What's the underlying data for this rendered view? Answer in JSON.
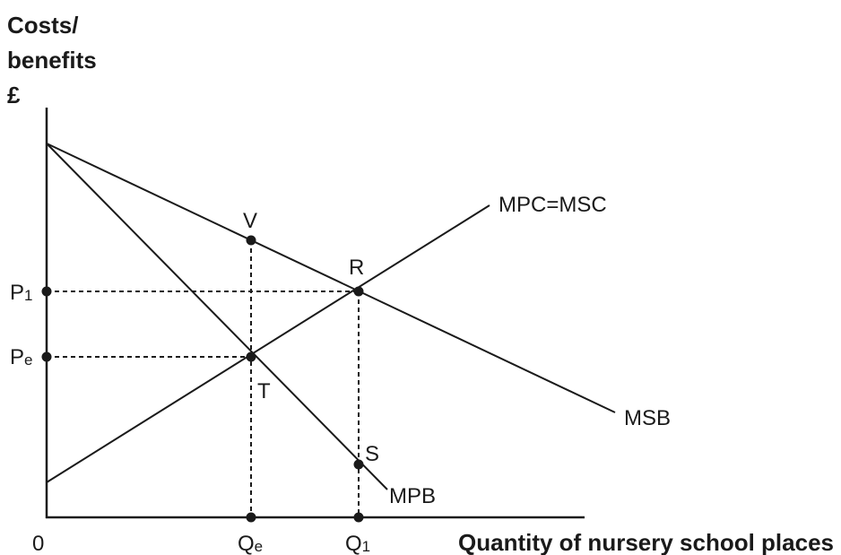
{
  "y_axis_label": {
    "line1": "Costs/",
    "line2": "benefits",
    "line3": "£"
  },
  "x_axis_label": "Quantity of nursery school places",
  "origin_label": "0",
  "curves": {
    "mpc_msc": "MPC=MSC",
    "msb": "MSB",
    "mpb": "MPB"
  },
  "points": {
    "V": "V",
    "R": "R",
    "T": "T",
    "S": "S"
  },
  "y_ticks": {
    "p1": {
      "main": "P",
      "sub": "1"
    },
    "pe": {
      "main": "P",
      "sub": "e"
    }
  },
  "x_ticks": {
    "qe": {
      "main": "Q",
      "sub": "e"
    },
    "q1": {
      "main": "Q",
      "sub": "1"
    }
  }
}
